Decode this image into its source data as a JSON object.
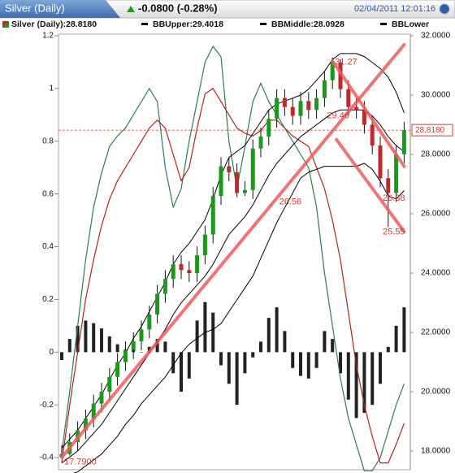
{
  "header": {
    "tab": "Silver (Daily)",
    "change": "-0.0800 (-0.28%)",
    "timestamp": "02/04/2011 12:01:16"
  },
  "chart_data": {
    "type": "candlestick",
    "categories": [
      null,
      null,
      null,
      null,
      null,
      null,
      null,
      null,
      null,
      null,
      null,
      null,
      null,
      null,
      null,
      null,
      null,
      null,
      null,
      null,
      null,
      null,
      null,
      null,
      null,
      null,
      null,
      null,
      null,
      null,
      null,
      null,
      null,
      null,
      null,
      null,
      null,
      null,
      null,
      null,
      null,
      null,
      null,
      null
    ],
    "candles": {
      "name": "Silver (Daily):28.8180",
      "axis": "y2",
      "up_color": "#1a9a1a",
      "down_color": "#c0282a",
      "wick_color": "#111111",
      "open": [
        17.8,
        17.9,
        18.3,
        18.7,
        19.1,
        19.6,
        20.0,
        20.5,
        21.0,
        21.4,
        21.7,
        22.1,
        22.6,
        23.3,
        23.8,
        24.3,
        24.1,
        24.0,
        24.6,
        25.3,
        26.6,
        27.6,
        27.4,
        26.7,
        26.8,
        28.2,
        28.6,
        29.2,
        29.9,
        29.6,
        29.3,
        29.8,
        29.5,
        29.9,
        30.5,
        31.1,
        30.2,
        29.6,
        29.5,
        29.0,
        28.3,
        27.2,
        26.7,
        28.0
      ],
      "high": [
        18.2,
        18.6,
        19.0,
        19.4,
        19.9,
        20.3,
        20.8,
        21.3,
        21.7,
        22.0,
        22.4,
        22.9,
        23.6,
        24.1,
        24.6,
        24.6,
        24.4,
        24.9,
        25.6,
        26.9,
        27.9,
        27.9,
        27.7,
        27.1,
        28.5,
        28.9,
        29.5,
        30.2,
        30.2,
        29.9,
        30.1,
        30.1,
        30.2,
        30.8,
        31.27,
        31.2,
        30.5,
        29.9,
        29.8,
        29.3,
        28.6,
        27.5,
        28.3,
        29.1
      ],
      "low": [
        17.79,
        17.85,
        18.0,
        18.4,
        18.8,
        19.3,
        19.7,
        20.2,
        20.7,
        21.1,
        21.4,
        21.8,
        22.3,
        23.0,
        23.5,
        23.8,
        23.7,
        23.7,
        24.3,
        25.0,
        26.3,
        27.1,
        26.56,
        26.6,
        26.5,
        27.9,
        28.3,
        28.9,
        29.3,
        29.0,
        29.0,
        29.2,
        29.2,
        29.6,
        30.2,
        29.9,
        29.3,
        29.2,
        28.7,
        28.0,
        26.9,
        25.55,
        26.4,
        27.7
      ],
      "close": [
        17.9,
        18.3,
        18.7,
        19.1,
        19.6,
        20.0,
        20.5,
        21.0,
        21.4,
        21.7,
        22.1,
        22.6,
        23.3,
        23.8,
        24.3,
        24.1,
        24.0,
        24.6,
        25.3,
        26.6,
        27.6,
        27.4,
        26.7,
        26.8,
        28.2,
        28.6,
        29.2,
        29.9,
        29.6,
        29.3,
        29.8,
        29.5,
        29.9,
        30.5,
        31.1,
        30.2,
        29.6,
        29.5,
        29.0,
        28.3,
        27.2,
        26.7,
        28.0,
        28.818
      ]
    },
    "bands": [
      {
        "name": "BBUpper:29.4018",
        "color": "#000000",
        "axis": "y2",
        "values": [
          18.1,
          18.4,
          18.7,
          19.1,
          19.5,
          19.9,
          20.4,
          20.9,
          21.3,
          21.8,
          22.2,
          22.7,
          23.2,
          23.7,
          24.3,
          24.7,
          25.0,
          25.4,
          25.8,
          26.5,
          27.3,
          27.9,
          28.1,
          28.3,
          28.7,
          29.1,
          29.5,
          29.7,
          29.8,
          29.9,
          30.0,
          30.2,
          30.5,
          30.8,
          31.2,
          31.4,
          31.4,
          31.4,
          31.3,
          31.1,
          30.9,
          30.6,
          30.1,
          29.4018
        ]
      },
      {
        "name": "BBMiddle:28.0928",
        "color": "#000000",
        "axis": "y2",
        "values": [
          17.6,
          17.8,
          18.0,
          18.3,
          18.6,
          18.9,
          19.3,
          19.7,
          20.1,
          20.5,
          20.9,
          21.3,
          21.7,
          22.1,
          22.6,
          23.0,
          23.3,
          23.6,
          23.9,
          24.3,
          24.8,
          25.3,
          25.6,
          25.9,
          26.3,
          26.8,
          27.3,
          27.7,
          28.0,
          28.3,
          28.6,
          28.8,
          29.0,
          29.2,
          29.4,
          29.5,
          29.5,
          29.5,
          29.5,
          29.3,
          29.0,
          28.6,
          28.3,
          28.0928
        ]
      },
      {
        "name": "BBLower",
        "color": "#000000",
        "axis": "y2",
        "values": [
          17.1,
          17.2,
          17.3,
          17.5,
          17.7,
          17.9,
          18.2,
          18.5,
          18.9,
          19.2,
          19.6,
          19.9,
          20.2,
          20.5,
          20.9,
          21.3,
          21.6,
          21.8,
          22.0,
          22.1,
          22.3,
          22.7,
          23.1,
          23.5,
          23.9,
          24.5,
          25.1,
          25.7,
          26.2,
          26.7,
          27.2,
          27.4,
          27.5,
          27.6,
          27.6,
          27.6,
          27.6,
          27.6,
          27.7,
          27.5,
          27.1,
          26.6,
          26.5,
          26.78
        ]
      }
    ],
    "histogram": {
      "color": "#222222",
      "values": [
        -0.03,
        0.05,
        0.1,
        0.12,
        0.11,
        0.09,
        0.06,
        0.03,
        0.01,
        0.02,
        0.0,
        0.02,
        0.05,
        0.04,
        -0.08,
        -0.15,
        -0.1,
        0.12,
        0.19,
        0.15,
        -0.05,
        -0.12,
        -0.2,
        -0.08,
        -0.02,
        0.04,
        0.13,
        0.17,
        0.08,
        -0.06,
        -0.09,
        -0.1,
        -0.06,
        0.08,
        0.05,
        -0.08,
        -0.18,
        -0.25,
        -0.23,
        -0.2,
        -0.12,
        0.02,
        0.1,
        0.17
      ]
    },
    "oscillators": [
      {
        "color": "#2e7d4f",
        "values": [
          -0.38,
          -0.15,
          0.1,
          0.35,
          0.55,
          0.68,
          0.78,
          0.82,
          0.85,
          0.9,
          0.95,
          1.0,
          0.95,
          0.7,
          0.55,
          0.62,
          0.8,
          0.95,
          1.1,
          1.16,
          1.12,
          0.8,
          0.62,
          0.78,
          0.95,
          1.02,
          0.95,
          0.9,
          0.85,
          0.8,
          0.75,
          0.7,
          0.55,
          0.3,
          0.1,
          -0.1,
          -0.25,
          -0.35,
          -0.45,
          -0.45,
          -0.4,
          -0.3,
          -0.2,
          -0.12
        ]
      },
      {
        "color": "#b22222",
        "values": [
          -0.42,
          -0.2,
          0.0,
          0.2,
          0.35,
          0.48,
          0.58,
          0.65,
          0.7,
          0.75,
          0.8,
          0.85,
          0.88,
          0.85,
          0.75,
          0.65,
          0.7,
          0.85,
          0.98,
          1.0,
          0.95,
          0.9,
          0.85,
          0.83,
          0.82,
          0.84,
          0.88,
          0.88,
          0.85,
          0.82,
          0.8,
          0.78,
          0.7,
          0.62,
          0.5,
          0.35,
          0.15,
          -0.05,
          -0.2,
          -0.32,
          -0.42,
          -0.42,
          -0.35,
          -0.27
        ]
      }
    ],
    "trend_lines": [
      {
        "color": "#f05a5a",
        "start": [
          0,
          17.79
        ],
        "end": [
          43,
          31.7
        ]
      },
      {
        "color": "#f05a5a",
        "start": [
          34,
          31.15
        ],
        "end": [
          43,
          27.6
        ]
      },
      {
        "color": "#f05a5a",
        "start": [
          34.5,
          28.5
        ],
        "end": [
          43,
          25.4
        ]
      }
    ],
    "annotations": [
      {
        "index": 34,
        "value": 31.27
      },
      {
        "index": 33,
        "value": 29.46
      },
      {
        "index": 27,
        "value": 26.56
      },
      {
        "index": 40,
        "value": 26.68
      },
      {
        "index": 40,
        "value": 25.55
      },
      {
        "index": 0,
        "value": 17.79,
        "label": "17.7900"
      }
    ],
    "last_price": {
      "value": 28.818,
      "label": "28.8180",
      "color": "#d03838"
    },
    "ylim": [
      -0.446,
      1.2
    ],
    "yticks": [
      1.2,
      1,
      0.8,
      0.6,
      0.4,
      0.2,
      0,
      -0.2,
      -0.4
    ],
    "y2lim": [
      17.37,
      32
    ],
    "y2ticks": [
      {
        "value": 32,
        "label": "32.0000"
      },
      {
        "value": 30,
        "label": "30.0000"
      },
      {
        "value": 28,
        "label": "28.0000"
      },
      {
        "value": 26,
        "label": "26.0000"
      },
      {
        "value": 24,
        "label": "24.0000"
      },
      {
        "value": 22,
        "label": "22.0000"
      },
      {
        "value": 20,
        "label": "20.0000"
      },
      {
        "value": 18,
        "label": "18.0000"
      }
    ]
  }
}
